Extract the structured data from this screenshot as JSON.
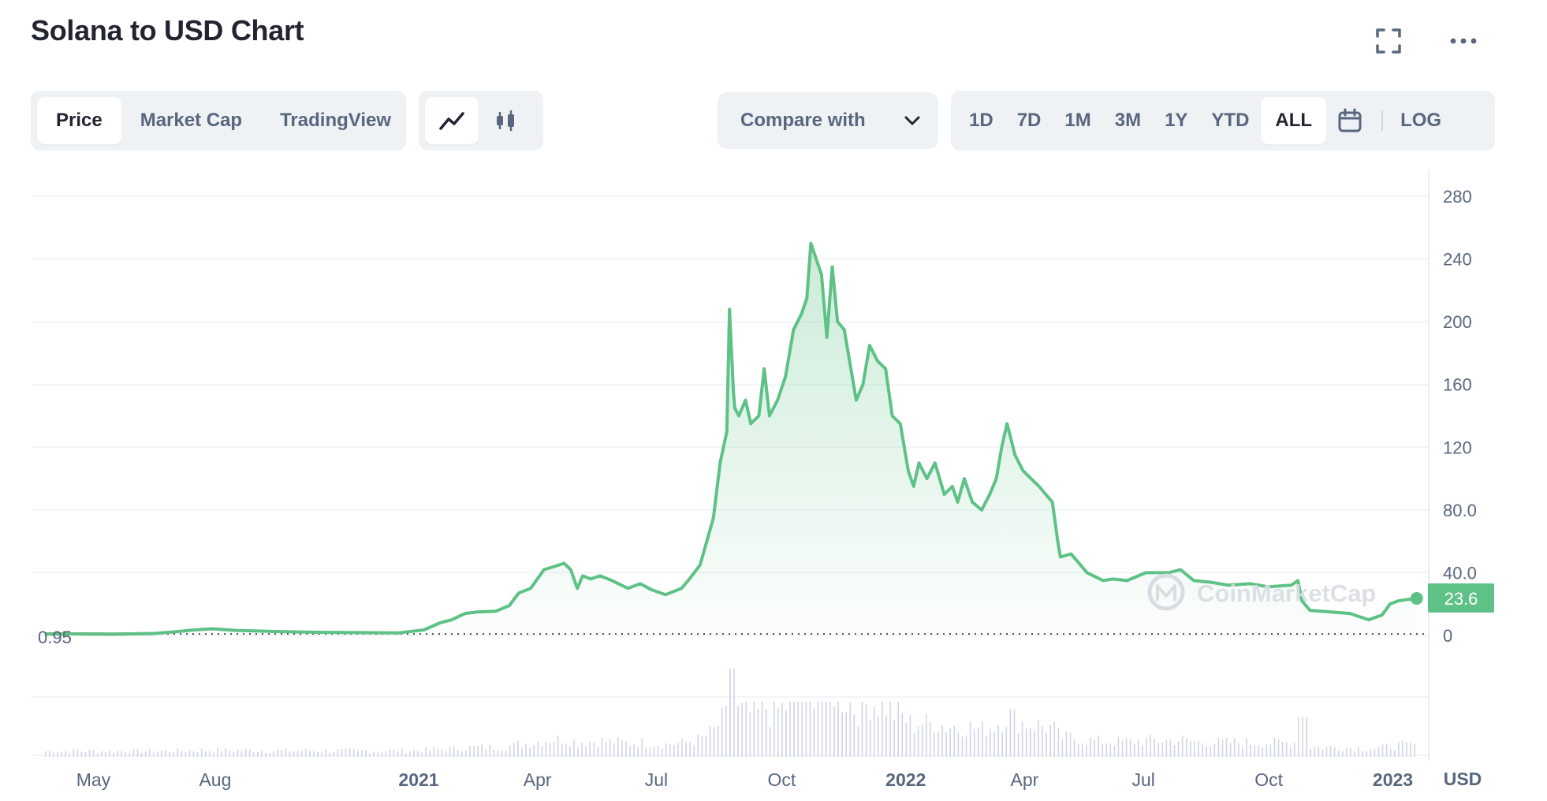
{
  "header": {
    "title": "Solana to USD Chart"
  },
  "toolbar": {
    "tabs": [
      {
        "label": "Price",
        "active": true
      },
      {
        "label": "Market Cap",
        "active": false
      },
      {
        "label": "TradingView",
        "active": false
      }
    ],
    "chart_style_icons": [
      "line-chart-icon",
      "candlestick-icon"
    ],
    "compare_label": "Compare with",
    "ranges": [
      {
        "label": "1D",
        "active": false
      },
      {
        "label": "7D",
        "active": false
      },
      {
        "label": "1M",
        "active": false
      },
      {
        "label": "3M",
        "active": false
      },
      {
        "label": "1Y",
        "active": false
      },
      {
        "label": "YTD",
        "active": false
      },
      {
        "label": "ALL",
        "active": true
      }
    ],
    "log_label": "LOG"
  },
  "colors": {
    "up": "#5ec186",
    "down": "#d44a3f",
    "badge": "#5ec186",
    "grid": "#eff2f5",
    "text": "#58667e"
  },
  "chart_data": {
    "type": "area",
    "title": "Solana to USD Chart",
    "currency": "USD",
    "ylim": [
      0,
      280
    ],
    "y_ticks": [
      "0",
      "40.0",
      "80.0",
      "120",
      "160",
      "200",
      "240",
      "280"
    ],
    "x_ticks": [
      {
        "label": "May",
        "bold": false,
        "date": "2020-05-01"
      },
      {
        "label": "Aug",
        "bold": false,
        "date": "2020-08-01"
      },
      {
        "label": "2021",
        "bold": true,
        "date": "2021-01-01"
      },
      {
        "label": "Apr",
        "bold": false,
        "date": "2021-04-01"
      },
      {
        "label": "Jul",
        "bold": false,
        "date": "2021-07-01"
      },
      {
        "label": "Oct",
        "bold": false,
        "date": "2021-10-01"
      },
      {
        "label": "2022",
        "bold": true,
        "date": "2022-01-01"
      },
      {
        "label": "Apr",
        "bold": false,
        "date": "2022-04-01"
      },
      {
        "label": "Jul",
        "bold": false,
        "date": "2022-07-01"
      },
      {
        "label": "Oct",
        "bold": false,
        "date": "2022-10-01"
      },
      {
        "label": "2023",
        "bold": true,
        "date": "2023-01-01"
      }
    ],
    "baseline_label": "0.95",
    "current_price_label": "23.6",
    "watermark": "CoinMarketCap",
    "series": [
      {
        "x": [
          "2020-04-11",
          "2020-05-01",
          "2020-06-01",
          "2020-07-01",
          "2020-07-20",
          "2020-08-01",
          "2020-08-15",
          "2020-09-01",
          "2020-10-01",
          "2020-11-01",
          "2020-12-01",
          "2021-01-01",
          "2021-01-20",
          "2021-02-01",
          "2021-02-10",
          "2021-02-20",
          "2021-03-01",
          "2021-03-15",
          "2021-03-25",
          "2021-04-01",
          "2021-04-10",
          "2021-04-20",
          "2021-04-28",
          "2021-05-05",
          "2021-05-10",
          "2021-05-15",
          "2021-05-19",
          "2021-05-25",
          "2021-06-01",
          "2021-06-10",
          "2021-06-22",
          "2021-07-01",
          "2021-07-10",
          "2021-07-20",
          "2021-08-01",
          "2021-08-07",
          "2021-08-15",
          "2021-08-20",
          "2021-08-25",
          "2021-08-30",
          "2021-09-04",
          "2021-09-06",
          "2021-09-09",
          "2021-09-10",
          "2021-09-13",
          "2021-09-18",
          "2021-09-22",
          "2021-09-28",
          "2021-10-02",
          "2021-10-06",
          "2021-10-12",
          "2021-10-18",
          "2021-10-24",
          "2021-10-30",
          "2021-11-03",
          "2021-11-06",
          "2021-11-10",
          "2021-11-14",
          "2021-11-18",
          "2021-11-22",
          "2021-11-26",
          "2021-12-01",
          "2021-12-05",
          "2021-12-10",
          "2021-12-15",
          "2021-12-20",
          "2021-12-26",
          "2022-01-01",
          "2022-01-06",
          "2022-01-12",
          "2022-01-18",
          "2022-01-22",
          "2022-01-26",
          "2022-02-01",
          "2022-02-07",
          "2022-02-14",
          "2022-02-20",
          "2022-02-24",
          "2022-03-01",
          "2022-03-07",
          "2022-03-14",
          "2022-03-20",
          "2022-03-25",
          "2022-03-29",
          "2022-04-02",
          "2022-04-08",
          "2022-04-14",
          "2022-04-20",
          "2022-04-26",
          "2022-05-01",
          "2022-05-06",
          "2022-05-10",
          "2022-05-12",
          "2022-05-20",
          "2022-06-01",
          "2022-06-13",
          "2022-06-20",
          "2022-07-01",
          "2022-07-15",
          "2022-08-01",
          "2022-08-10",
          "2022-08-20",
          "2022-09-01",
          "2022-09-15",
          "2022-10-01",
          "2022-10-15",
          "2022-11-01",
          "2022-11-06",
          "2022-11-09",
          "2022-11-15",
          "2022-12-01",
          "2022-12-15",
          "2022-12-29",
          "2023-01-08",
          "2023-01-14",
          "2023-01-20",
          "2023-01-28",
          "2023-02-03"
        ],
        "y": [
          0.95,
          1.0,
          0.8,
          1.2,
          2.5,
          3.5,
          4.2,
          3.2,
          2.5,
          2.0,
          1.8,
          1.6,
          3.5,
          8.0,
          10.0,
          14.0,
          15.0,
          15.5,
          19.0,
          27.0,
          30.0,
          42.0,
          44.0,
          46.0,
          42.0,
          30.0,
          38.0,
          36.0,
          38.0,
          35.0,
          30.0,
          33.0,
          29.0,
          26.0,
          30.0,
          36.0,
          45.0,
          60.0,
          75.0,
          110.0,
          130.0,
          208.0,
          155.0,
          145.0,
          140.0,
          150.0,
          135.0,
          140.0,
          170.0,
          140.0,
          150.0,
          165.0,
          195.0,
          205.0,
          215.0,
          250.0,
          240.0,
          230.0,
          190.0,
          235.0,
          200.0,
          195.0,
          175.0,
          150.0,
          160.0,
          185.0,
          175.0,
          170.0,
          140.0,
          135.0,
          105.0,
          95.0,
          110.0,
          100.0,
          110.0,
          90.0,
          95.0,
          85.0,
          100.0,
          85.0,
          80.0,
          90.0,
          100.0,
          120.0,
          135.0,
          115.0,
          105.0,
          100.0,
          95.0,
          90.0,
          85.0,
          60.0,
          50.0,
          52.0,
          40.0,
          35.0,
          36.0,
          35.0,
          40.0,
          40.0,
          42.0,
          35.0,
          34.0,
          32.0,
          33.0,
          31.0,
          32.0,
          35.0,
          22.0,
          16.0,
          15.0,
          14.0,
          10.0,
          13.0,
          20.0,
          22.0,
          23.0,
          23.6
        ]
      }
    ],
    "volume": {
      "peak_date": "2021-09-07",
      "note": "relative trading volume bars beneath price"
    }
  }
}
